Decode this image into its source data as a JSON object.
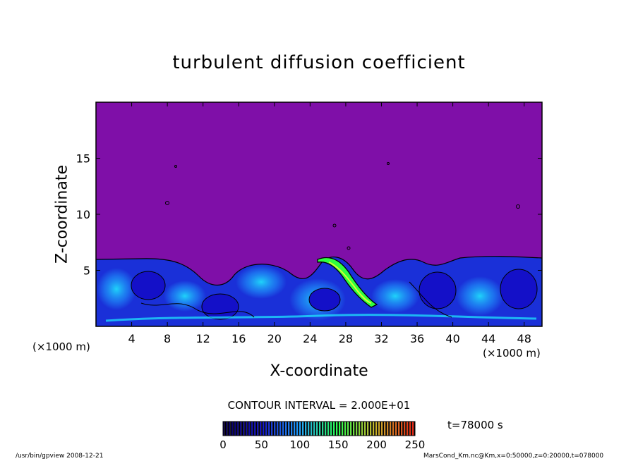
{
  "chart_data": {
    "type": "heatmap",
    "title": "turbulent diffusion coefficient",
    "xlabel": "X-coordinate",
    "ylabel": "Z-coordinate",
    "x_unit": "(×1000 m)",
    "x_ticks": [
      4,
      8,
      12,
      16,
      20,
      24,
      28,
      32,
      36,
      40,
      44,
      48
    ],
    "y_ticks": [
      5,
      10,
      15
    ],
    "xlim": [
      0,
      50
    ],
    "ylim": [
      0,
      20
    ],
    "contour_interval": "CONTOUR INTERVAL = 2.000E+01",
    "colorbar": {
      "range": [
        0,
        250
      ],
      "ticks": [
        "0",
        "50",
        "100",
        "150",
        "200",
        "250"
      ]
    },
    "time": "t=78000 s",
    "background_value": 0,
    "turbulent_layer_top_km": 6.1,
    "peak_region": {
      "x_km": [
        25.5,
        31.5
      ],
      "z_km": [
        2,
        6.5
      ],
      "max_value": 150
    }
  },
  "colors": {
    "background_field": "#7f0fa8",
    "low": "#1410c8",
    "mid": "#1fa0ff",
    "high": "#20f0ff",
    "peak": "#30ff40"
  },
  "footer": {
    "left": "/usr/bin/gpview   2008-12-21",
    "right": "MarsCond_Km.nc@Km,x=0:50000,z=0:20000,t=078000"
  }
}
